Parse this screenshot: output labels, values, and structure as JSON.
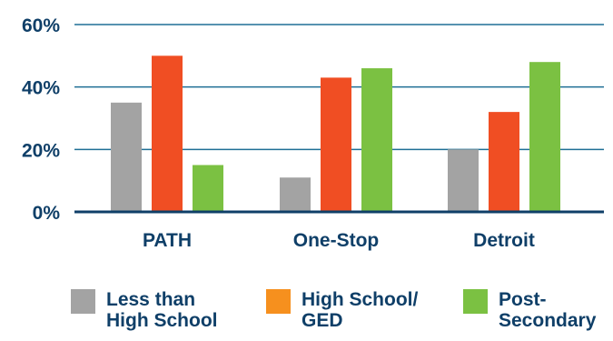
{
  "colors": {
    "axis": "#0f3f68",
    "grid": "#1f6f95",
    "text": "#0f3f68"
  },
  "legend": [
    {
      "label": "Less than\nHigh School",
      "color": "#a3a3a3"
    },
    {
      "label": "High School/\nGED",
      "color": "#f6901e"
    },
    {
      "label": "Post-\nSecondary",
      "color": "#7bc142"
    }
  ],
  "chart_data": {
    "type": "bar",
    "categories": [
      "PATH",
      "One-Stop",
      "Detroit"
    ],
    "series": [
      {
        "name": "Less than High School",
        "color": "#a3a3a3",
        "values": [
          35,
          11,
          20
        ]
      },
      {
        "name": "High School/ GED",
        "color": "#f04e23",
        "values": [
          50,
          43,
          32
        ]
      },
      {
        "name": "Post-Secondary",
        "color": "#7bc142",
        "values": [
          15,
          46,
          48
        ]
      }
    ],
    "yticks": [
      "0%",
      "20%",
      "40%",
      "60%"
    ],
    "ylim": [
      0,
      60
    ],
    "grid": true,
    "legend_position": "bottom",
    "title": "",
    "xlabel": "",
    "ylabel": ""
  }
}
